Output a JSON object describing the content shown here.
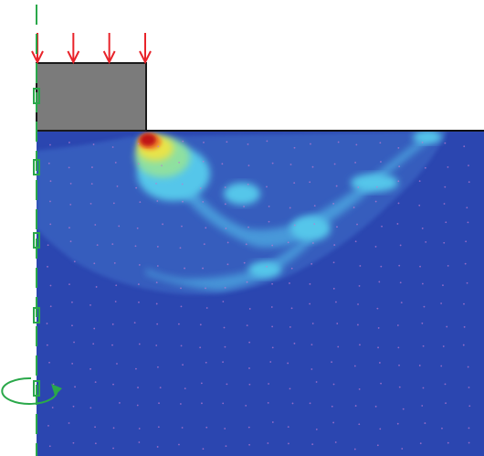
{
  "diagram": {
    "kind": "strain-contour-plot",
    "load": {
      "arrow_count": 4,
      "color": "#e8232a",
      "icon": "down-arrow-icon"
    },
    "footing": {
      "fill": "#7b7b7b",
      "stroke": "#1a1a1a"
    },
    "soil": {
      "fill": "#2b46b0"
    },
    "axis": {
      "color": "#2aa84a",
      "icon": "rotation-arrow-icon"
    },
    "colormap": [
      "#2b46b0",
      "#3f70c9",
      "#4ba3df",
      "#55c6ea",
      "#8fe0a0",
      "#e8e34a",
      "#f08a2a",
      "#c01818"
    ]
  }
}
